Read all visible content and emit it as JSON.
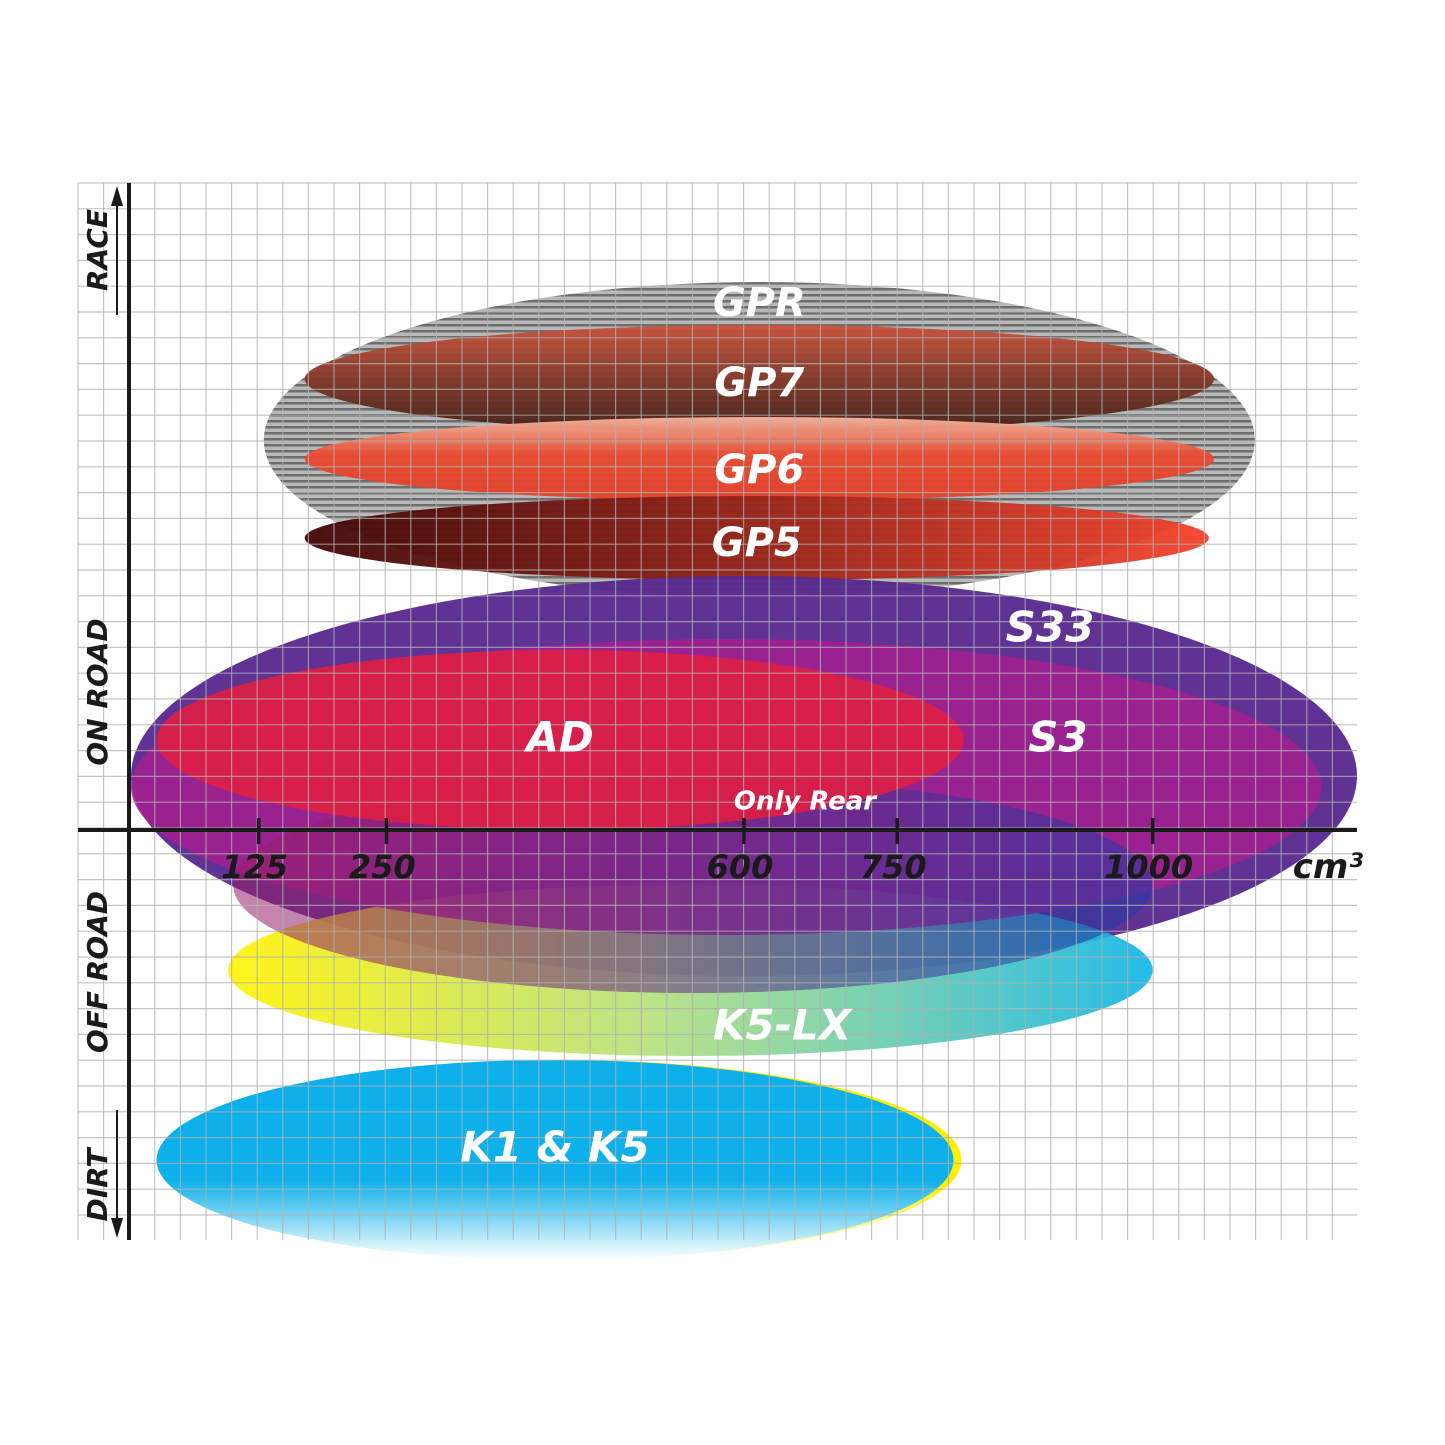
{
  "chart_data": {
    "type": "ellipse-range",
    "title": "",
    "xlabel": "cm³",
    "x_unit": "cm³",
    "xlim": [
      0,
      1200
    ],
    "x_ticks": [
      125,
      250,
      600,
      750,
      1000
    ],
    "x_tick_labels": [
      "125",
      "250",
      "600",
      "750",
      "1000"
    ],
    "y_labels": [
      "RACE",
      "ON ROAD",
      "OFF ROAD",
      "DIRT"
    ],
    "grid": true,
    "series": [
      {
        "name": "GPR",
        "x_range": [
          130,
          1100
        ],
        "colors": [
          "#b5b5b5",
          "#7a7a7a"
        ]
      },
      {
        "name": "GP7",
        "x_range": [
          170,
          1060
        ],
        "colors": [
          "#c24a32",
          "#4a2418"
        ]
      },
      {
        "name": "GP6",
        "x_range": [
          170,
          1060
        ],
        "colors": [
          "#f0a080",
          "#e8432a"
        ]
      },
      {
        "name": "GP5",
        "x_range": [
          170,
          1055
        ],
        "colors": [
          "#4a0a0a",
          "#f0402a"
        ]
      },
      {
        "name": "S33",
        "x_range": [
          0,
          1200
        ],
        "colors": [
          "#5a2a90",
          "#5a2a90"
        ]
      },
      {
        "name": "S3",
        "x_range": [
          0,
          1165
        ],
        "colors": [
          "#a0208e",
          "#a0208e"
        ]
      },
      {
        "name": "AD",
        "x_range": [
          25,
          815
        ],
        "colors": [
          "#dc1e46",
          "#dc1e46"
        ]
      },
      {
        "name": "Only Rear",
        "x_range": [
          100,
          1000
        ],
        "colors": [
          "#8a1a5a",
          "#1e3aa0"
        ]
      },
      {
        "name": "K5-LX",
        "x_range": [
          95,
          1000
        ],
        "colors": [
          "#fff200",
          "#10b4e0"
        ]
      },
      {
        "name": "K1 & K5",
        "x_range": [
          25,
          805
        ],
        "colors": [
          "#0db0ea",
          "#ffee00"
        ]
      }
    ]
  }
}
